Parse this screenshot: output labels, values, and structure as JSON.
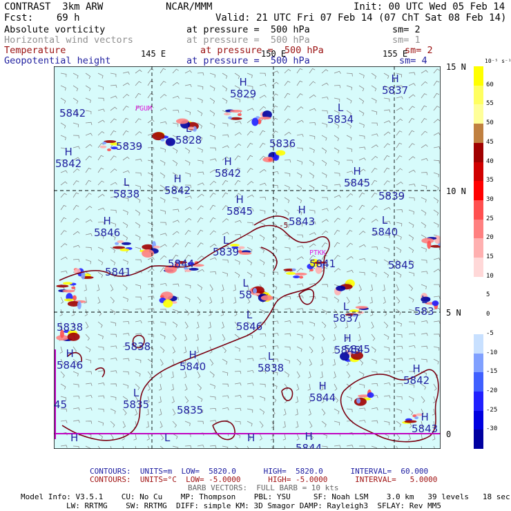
{
  "header": {
    "left_line1": "CONTRAST  3km ARW",
    "left_line2": "Fcst:    69 h",
    "center": "NCAR/MMM",
    "init": "Init: 00 UTC Wed 05 Feb 14",
    "valid": "Valid: 21 UTC Fri 07 Feb 14 (07 ChT Sat 08 Feb 14)"
  },
  "fields": [
    {
      "name": "Absolute vorticity",
      "level": "at pressure =  500 hPa",
      "sm": "sm= 2",
      "color": "#000000"
    },
    {
      "name": "Horizontal wind vectors",
      "level": "at pressure =  500 hPa",
      "sm": "sm= 1",
      "color": "#909090"
    },
    {
      "name": "Temperature",
      "level": "at pressure =  500 hPa",
      "sm": "sm= 2",
      "color": "#9a1010"
    },
    {
      "name": "Geopotential height",
      "level": "at pressure =  500 hPa",
      "sm": "sm= 4",
      "color": "#2020a0"
    }
  ],
  "axes": {
    "lon_labels": [
      "145 E",
      "150 E",
      "155 E"
    ],
    "lat_labels": [
      "15 N",
      "10 N",
      "5 N",
      "0"
    ]
  },
  "map_labels": {
    "stations": [
      "PGUM",
      "PTKK"
    ],
    "small": [
      "-5"
    ],
    "centers": [
      {
        "t": "H",
        "v": "5829"
      },
      {
        "t": "H",
        "v": "5837"
      },
      {
        "t": "",
        "v": "5842"
      },
      {
        "t": "L",
        "v": "5834"
      },
      {
        "t": "L",
        "v": "5828"
      },
      {
        "t": "",
        "v": "5839"
      },
      {
        "t": "",
        "v": "5836"
      },
      {
        "t": "H",
        "v": "5842"
      },
      {
        "t": "H",
        "v": "5842"
      },
      {
        "t": "H",
        "v": "5845"
      },
      {
        "t": "L",
        "v": "5838"
      },
      {
        "t": "H",
        "v": "5842"
      },
      {
        "t": "H",
        "v": "5845"
      },
      {
        "t": "H",
        "v": "5843"
      },
      {
        "t": "",
        "v": "5839"
      },
      {
        "t": "H",
        "v": "5846"
      },
      {
        "t": "L",
        "v": "5839"
      },
      {
        "t": "L",
        "v": "5840"
      },
      {
        "t": "",
        "v": "5845"
      },
      {
        "t": "",
        "v": "5844"
      },
      {
        "t": "L",
        "v": "58"
      },
      {
        "t": "L",
        "v": "5837"
      },
      {
        "t": "L",
        "v": "583"
      },
      {
        "t": "",
        "v": "5841"
      },
      {
        "t": "L",
        "v": "5846"
      },
      {
        "t": "",
        "v": "5838"
      },
      {
        "t": "H",
        "v": "5845"
      },
      {
        "t": "H",
        "v": "5840"
      },
      {
        "t": "L",
        "v": "5838"
      },
      {
        "t": "H",
        "v": "5846"
      },
      {
        "t": "H",
        "v": "5842"
      },
      {
        "t": "H",
        "v": "5844"
      },
      {
        "t": "L",
        "v": "5835"
      },
      {
        "t": "",
        "v": "5835"
      },
      {
        "t": "",
        "v": "45"
      },
      {
        "t": "H",
        "v": "5843"
      },
      {
        "t": "H",
        "v": "5844"
      },
      {
        "t": "",
        "v": "5841"
      },
      {
        "t": "",
        "v": "5838"
      },
      {
        "t": "",
        "v": "5845"
      },
      {
        "t": "H",
        "v": ""
      },
      {
        "t": "L",
        "v": ""
      },
      {
        "t": "H",
        "v": ""
      }
    ]
  },
  "colorbar": {
    "unit": "10⁻⁵ s⁻¹",
    "ticks": [
      "60",
      "55",
      "50",
      "45",
      "40",
      "35",
      "30",
      "25",
      "20",
      "15",
      "10",
      "5",
      "0",
      "-5",
      "-10",
      "-15",
      "-20",
      "-25",
      "-30"
    ],
    "colors": [
      "#ffff00",
      "#ffff60",
      "#ffff99",
      "#c08040",
      "#a00000",
      "#d00000",
      "#ff0000",
      "#ff5050",
      "#ff8080",
      "#ffb0b0",
      "#ffd8d8",
      "#ffffff",
      "#ffffff",
      "#ffffff",
      "#c8e0ff",
      "#80a0ff",
      "#4060ff",
      "#2020ff",
      "#0000e0",
      "#0000a0"
    ]
  },
  "footer": {
    "contours1": "CONTOURS:  UNITS=m  LOW=  5820.0      HIGH=  5820.0      INTERVAL=  60.000",
    "contours2": "CONTOURS:  UNITS=°C  LOW= -5.0000      HIGH= -5.0000      INTERVAL=   5.0000",
    "barbs": "BARB VECTORS:  FULL BARB = 10 kts",
    "model1": "Model Info: V3.5.1    CU: No Cu    MP: Thompson    PBL: YSU     SF: Noah LSM    3.0 km   39 levels   18 sec",
    "model2": "LW: RRTMG    SW: RRTMG  DIFF: simple KM: 3D Smagor DAMP: Rayleigh3  SFLAY: Rev MM5"
  },
  "colors": {
    "map_background": "#d7fbfb",
    "height_contour": "#2020a0",
    "temp_contour": "#7a0010",
    "grid": "#000000",
    "frame_accent": "#c000c0"
  }
}
